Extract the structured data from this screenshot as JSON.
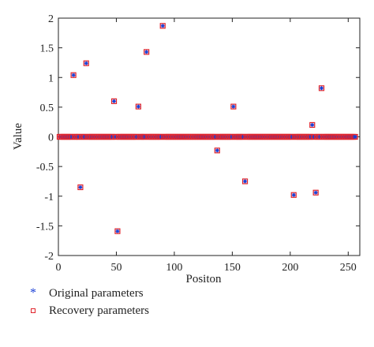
{
  "chart_data": {
    "type": "scatter",
    "title": "",
    "xlabel": "Positon",
    "ylabel": "Value",
    "xlim": [
      0,
      260
    ],
    "ylim": [
      -2,
      2
    ],
    "xticks": [
      0,
      50,
      100,
      150,
      200,
      250
    ],
    "yticks": [
      -2,
      -1.5,
      -1,
      -0.5,
      0,
      0.5,
      1,
      1.5,
      2
    ],
    "xtick_labels": [
      "0",
      "50",
      "100",
      "150",
      "200",
      "250"
    ],
    "ytick_labels": [
      "-2",
      "-1.5",
      "-1",
      "-0.5",
      "0",
      "0.5",
      "1",
      "1.5",
      "2"
    ],
    "grid": false,
    "legend_position": "below-left",
    "n_positions": 256,
    "nonzero_points": [
      {
        "x": 13,
        "y": 1.04
      },
      {
        "x": 19,
        "y": -0.85
      },
      {
        "x": 24,
        "y": 1.24
      },
      {
        "x": 48,
        "y": 0.6
      },
      {
        "x": 51,
        "y": -1.59
      },
      {
        "x": 69,
        "y": 0.51
      },
      {
        "x": 76,
        "y": 1.43
      },
      {
        "x": 90,
        "y": 1.87
      },
      {
        "x": 137,
        "y": -0.23
      },
      {
        "x": 151,
        "y": 0.51
      },
      {
        "x": 161,
        "y": -0.75
      },
      {
        "x": 203,
        "y": -0.98
      },
      {
        "x": 219,
        "y": 0.2
      },
      {
        "x": 222,
        "y": -0.94
      },
      {
        "x": 227,
        "y": 0.82
      }
    ],
    "series": [
      {
        "name": "Original parameters",
        "marker": "star",
        "color": "#1a3fd6"
      },
      {
        "name": "Recovery parameters",
        "marker": "square",
        "color": "#e0242c"
      }
    ]
  }
}
